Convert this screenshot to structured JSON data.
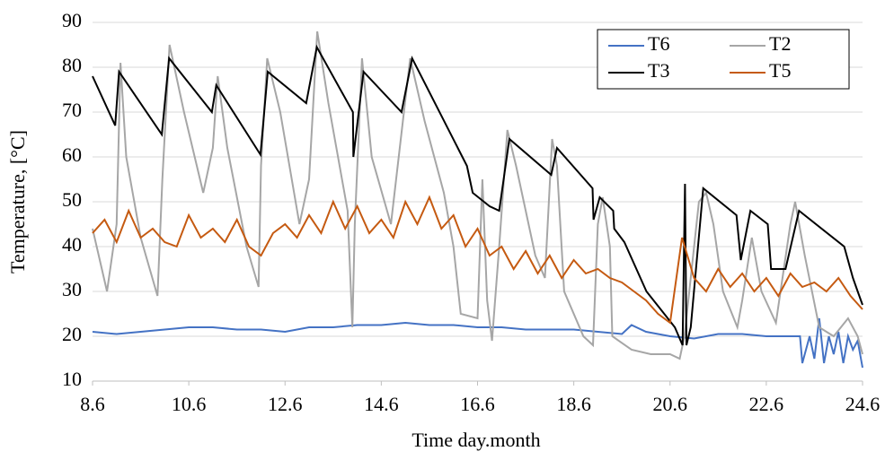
{
  "chart_data": {
    "type": "line",
    "x_label": "Time day.month",
    "y_label": "Temperature, [°C]",
    "xlim": [
      8,
      24
    ],
    "ylim": [
      10,
      90
    ],
    "xticks": [
      {
        "value": 8,
        "label": "8.6"
      },
      {
        "value": 10,
        "label": "10.6"
      },
      {
        "value": 12,
        "label": "12.6"
      },
      {
        "value": 14,
        "label": "14.6"
      },
      {
        "value": 16,
        "label": "16.6"
      },
      {
        "value": 18,
        "label": "18.6"
      },
      {
        "value": 20,
        "label": "20.6"
      },
      {
        "value": 22,
        "label": "22.6"
      },
      {
        "value": 24,
        "label": "24.6"
      }
    ],
    "yticks": [
      10,
      20,
      30,
      40,
      50,
      60,
      70,
      80,
      90
    ],
    "legend": "top-right",
    "series": [
      {
        "name": "T6",
        "color": "#4472c4",
        "x": [
          8,
          8.5,
          9,
          9.5,
          10,
          10.5,
          11,
          11.5,
          12,
          12.5,
          13,
          13.5,
          14,
          14.5,
          15,
          15.5,
          16,
          16.5,
          17,
          17.5,
          18,
          18.5,
          19,
          19.2,
          19.5,
          20,
          20.5,
          21,
          21.5,
          22,
          22.5,
          22.7,
          22.75,
          22.9,
          23.0,
          23.1,
          23.2,
          23.3,
          23.4,
          23.5,
          23.6,
          23.7,
          23.8,
          23.9,
          24
        ],
        "values": [
          21,
          20.5,
          21,
          21.5,
          22,
          22,
          21.5,
          21.5,
          21,
          22,
          22,
          22.5,
          22.5,
          23,
          22.5,
          22.5,
          22,
          22,
          21.5,
          21.5,
          21.5,
          21,
          20.5,
          22.5,
          21,
          20,
          19.5,
          20.5,
          20.5,
          20,
          20,
          20,
          14,
          20,
          15,
          24,
          14,
          20,
          16,
          21,
          14,
          20,
          17,
          19,
          13
        ]
      },
      {
        "name": "T2",
        "color": "#a6a6a6",
        "x": [
          8,
          8.3,
          8.5,
          8.58,
          8.7,
          9.0,
          9.35,
          9.45,
          9.6,
          9.9,
          10.3,
          10.5,
          10.6,
          10.8,
          11.2,
          11.45,
          11.5,
          11.63,
          11.9,
          12.3,
          12.5,
          12.67,
          12.9,
          13.3,
          13.4,
          13.45,
          13.6,
          13.8,
          14.2,
          14.6,
          14.9,
          15.3,
          15.5,
          15.65,
          16.0,
          16.1,
          16.2,
          16.3,
          16.45,
          16.62,
          16.8,
          17.2,
          17.4,
          17.55,
          17.65,
          17.8,
          18.2,
          18.4,
          18.5,
          18.6,
          18.75,
          18.8,
          19.2,
          19.6,
          20.0,
          20.2,
          20.3,
          20.6,
          20.75,
          20.9,
          21.1,
          21.4,
          21.5,
          21.7,
          21.9,
          22.2,
          22.5,
          22.6,
          22.8,
          23.1,
          23.4,
          23.7,
          23.9,
          24
        ],
        "values": [
          44,
          30,
          45,
          81,
          60,
          42,
          29,
          55,
          85,
          70,
          52,
          62,
          78,
          62,
          40,
          31,
          58,
          82,
          70,
          45,
          55,
          88,
          72,
          48,
          22,
          45,
          82,
          60,
          45,
          82,
          68,
          52,
          40,
          25,
          24,
          55,
          28,
          19,
          40,
          66,
          58,
          38,
          33,
          64,
          58,
          30,
          20,
          18,
          45,
          51,
          40,
          20,
          17,
          16,
          16,
          15,
          20,
          50,
          52,
          45,
          30,
          22,
          28,
          42,
          30,
          23,
          45,
          50,
          38,
          22,
          20,
          24,
          20,
          16
        ]
      },
      {
        "name": "T3",
        "color": "#000000",
        "x": [
          8,
          8.47,
          8.55,
          9.44,
          9.59,
          10.48,
          10.57,
          11.49,
          11.64,
          12.44,
          12.66,
          13.41,
          13.42,
          13.63,
          14.42,
          14.64,
          15.78,
          15.9,
          16.25,
          16.45,
          16.66,
          17.53,
          17.65,
          18.39,
          18.41,
          18.54,
          18.82,
          18.84,
          19.05,
          19.51,
          19.88,
          20.1,
          20.26,
          20.31,
          20.34,
          20.43,
          20.69,
          21.38,
          21.47,
          21.67,
          22.03,
          22.1,
          22.4,
          22.68,
          23.62,
          23.8,
          23.9,
          24
        ],
        "values": [
          78,
          67,
          79,
          65,
          82,
          70,
          76,
          60.5,
          79,
          72,
          84.5,
          70,
          60,
          79,
          70,
          82,
          58,
          52,
          49,
          48,
          64,
          56,
          62,
          53,
          46,
          51,
          48,
          44,
          41,
          30,
          25,
          22,
          18,
          54,
          18,
          22,
          53,
          47,
          37,
          48,
          45,
          35,
          35,
          48,
          40,
          33,
          30,
          27
        ]
      },
      {
        "name": "T5",
        "color": "#c55a11",
        "x": [
          8,
          8.25,
          8.5,
          8.75,
          9,
          9.25,
          9.5,
          9.75,
          10,
          10.25,
          10.5,
          10.75,
          11,
          11.25,
          11.5,
          11.75,
          12,
          12.25,
          12.5,
          12.75,
          13,
          13.25,
          13.5,
          13.75,
          14,
          14.25,
          14.5,
          14.75,
          15,
          15.25,
          15.5,
          15.75,
          16,
          16.25,
          16.5,
          16.75,
          17,
          17.25,
          17.5,
          17.75,
          18,
          18.25,
          18.5,
          18.75,
          19,
          19.25,
          19.5,
          19.75,
          20,
          20.25,
          20.5,
          20.75,
          21,
          21.25,
          21.5,
          21.75,
          22,
          22.25,
          22.5,
          22.75,
          23,
          23.25,
          23.5,
          23.75,
          24
        ],
        "values": [
          43,
          46,
          41,
          48,
          42,
          44,
          41,
          40,
          47,
          42,
          44,
          41,
          46,
          40,
          38,
          43,
          45,
          42,
          47,
          43,
          50,
          44,
          49,
          43,
          46,
          42,
          50,
          45,
          51,
          44,
          47,
          40,
          44,
          38,
          40,
          35,
          39,
          34,
          38,
          33,
          37,
          34,
          35,
          33,
          32,
          30,
          28,
          25,
          23,
          42,
          33,
          30,
          35,
          31,
          34,
          30,
          33,
          29,
          34,
          31,
          32,
          30,
          33,
          29,
          26
        ]
      }
    ]
  }
}
